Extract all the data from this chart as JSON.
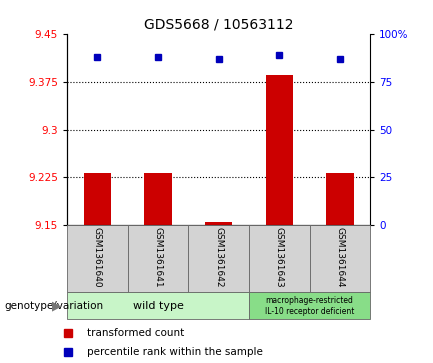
{
  "title": "GDS5668 / 10563112",
  "samples": [
    "GSM1361640",
    "GSM1361641",
    "GSM1361642",
    "GSM1361643",
    "GSM1361644"
  ],
  "transformed_counts": [
    9.232,
    9.232,
    9.155,
    9.387,
    9.232
  ],
  "percentile_ranks": [
    88,
    88,
    87,
    89,
    87
  ],
  "ylim_left": [
    9.15,
    9.45
  ],
  "ylim_right": [
    0,
    100
  ],
  "yticks_left": [
    9.15,
    9.225,
    9.3,
    9.375,
    9.45
  ],
  "ytick_labels_left": [
    "9.15",
    "9.225",
    "9.3",
    "9.375",
    "9.45"
  ],
  "yticks_right": [
    0,
    25,
    50,
    75,
    100
  ],
  "ytick_labels_right": [
    "0",
    "25",
    "50",
    "75",
    "100%"
  ],
  "hlines": [
    9.225,
    9.3,
    9.375
  ],
  "bar_color": "#cc0000",
  "dot_color": "#0000bb",
  "bar_bottom": 9.15,
  "group1_label": "wild type",
  "group1_color": "#c8f5c8",
  "group2_label": "macrophage-restricted\nIL-10 receptor deficient",
  "group2_color": "#88dd88",
  "genotype_label": "genotype/variation",
  "legend_bar_label": "transformed count",
  "legend_dot_label": "percentile rank within the sample",
  "background_color": "#ffffff",
  "sample_box_color": "#d3d3d3",
  "sample_box_edge": "#666666",
  "title_fontsize": 10,
  "tick_fontsize": 7.5,
  "sample_fontsize": 6.5,
  "group_fontsize": 8,
  "legend_fontsize": 7.5,
  "genotype_fontsize": 7.5
}
